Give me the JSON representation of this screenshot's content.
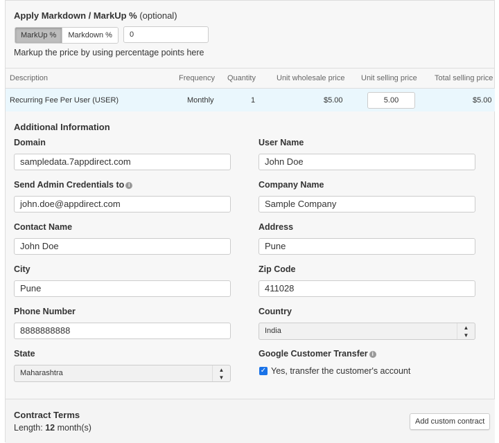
{
  "markup": {
    "title": "Apply Markdown / MarkUp %",
    "optional": "(optional)",
    "markup_label": "MarkUp %",
    "markdown_label": "Markdown %",
    "value": "0",
    "help": "Markup the price by using percentage points here",
    "selected": "MarkUp %"
  },
  "table": {
    "headers": [
      "Description",
      "Frequency",
      "Quantity",
      "Unit wholesale price",
      "Unit selling price",
      "Total selling price"
    ],
    "row": {
      "description": "Recurring Fee Per User (USER)",
      "frequency": "Monthly",
      "quantity": "1",
      "wholesale": "$5.00",
      "selling": "5.00",
      "total": "$5.00"
    }
  },
  "additional": {
    "title": "Additional Information",
    "domain_label": "Domain",
    "domain": "sampledata.7appdirect.com",
    "user_name_label": "User Name",
    "user_name": "John Doe",
    "admin_label": "Send Admin Credentials to",
    "admin": "john.doe@appdirect.com",
    "company_label": "Company Name",
    "company": "Sample Company",
    "contact_label": "Contact Name",
    "contact": "John Doe",
    "address_label": "Address",
    "address": "Pune",
    "city_label": "City",
    "city": "Pune",
    "zip_label": "Zip Code",
    "zip": "411028",
    "phone_label": "Phone Number",
    "phone": "8888888888",
    "country_label": "Country",
    "country": "India",
    "state_label": "State",
    "state": "Maharashtra",
    "transfer_label": "Google Customer Transfer",
    "transfer_checkbox": "Yes, transfer the customer's account",
    "transfer_checked": true
  },
  "contract": {
    "title": "Contract Terms",
    "length_label": "Length:",
    "length_value": "12",
    "length_unit": "month(s)",
    "add_button": "Add custom contract"
  },
  "colors": {
    "row_highlight": "#eaf7fd",
    "checkbox": "#1a73e8"
  }
}
